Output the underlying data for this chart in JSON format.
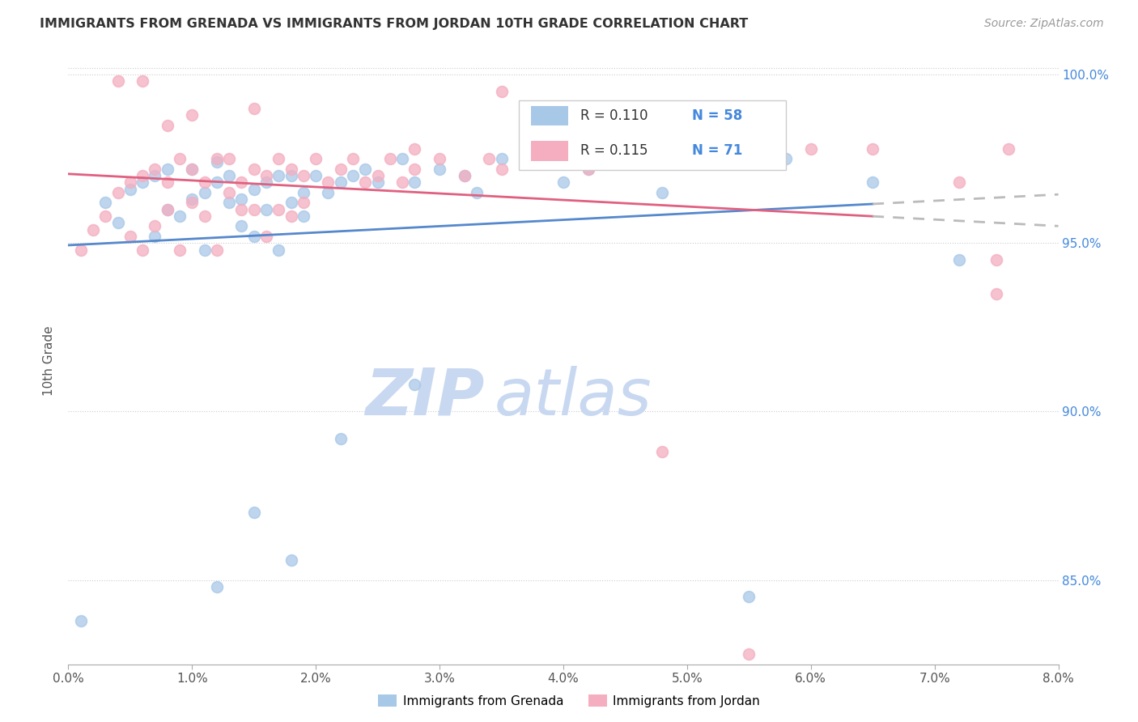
{
  "title": "IMMIGRANTS FROM GRENADA VS IMMIGRANTS FROM JORDAN 10TH GRADE CORRELATION CHART",
  "source": "Source: ZipAtlas.com",
  "ylabel": "10th Grade",
  "R_grenada": 0.11,
  "N_grenada": 58,
  "R_jordan": 0.115,
  "N_jordan": 71,
  "color_grenada": "#a8c8e8",
  "color_jordan": "#f4aec0",
  "trendline_grenada": "#5588cc",
  "trendline_jordan": "#e06080",
  "trendline_dashed_color": "#bbbbbb",
  "watermark_zip_color": "#c8d8f0",
  "watermark_atlas_color": "#c8d8f0",
  "background_color": "#ffffff",
  "xlim": [
    0.0,
    0.08
  ],
  "ylim": [
    0.825,
    1.005
  ],
  "xticks": [
    0.0,
    0.01,
    0.02,
    0.03,
    0.04,
    0.05,
    0.06,
    0.07,
    0.08
  ],
  "yticks": [
    0.85,
    0.9,
    0.95,
    1.0
  ],
  "trend_solid_end": 0.065,
  "grenada_x": [
    0.001,
    0.003,
    0.004,
    0.005,
    0.006,
    0.007,
    0.007,
    0.008,
    0.008,
    0.009,
    0.01,
    0.01,
    0.011,
    0.011,
    0.012,
    0.012,
    0.013,
    0.013,
    0.014,
    0.014,
    0.015,
    0.015,
    0.016,
    0.016,
    0.017,
    0.017,
    0.018,
    0.018,
    0.019,
    0.019,
    0.02,
    0.021,
    0.022,
    0.023,
    0.024,
    0.025,
    0.027,
    0.028,
    0.03,
    0.032,
    0.033,
    0.035,
    0.038,
    0.04,
    0.042,
    0.044,
    0.048,
    0.052,
    0.055,
    0.058,
    0.012,
    0.015,
    0.018,
    0.022,
    0.028,
    0.055,
    0.065,
    0.072
  ],
  "grenada_y": [
    0.838,
    0.962,
    0.956,
    0.966,
    0.968,
    0.97,
    0.952,
    0.96,
    0.972,
    0.958,
    0.963,
    0.972,
    0.965,
    0.948,
    0.968,
    0.974,
    0.97,
    0.962,
    0.963,
    0.955,
    0.966,
    0.952,
    0.96,
    0.968,
    0.97,
    0.948,
    0.97,
    0.962,
    0.965,
    0.958,
    0.97,
    0.965,
    0.968,
    0.97,
    0.972,
    0.968,
    0.975,
    0.968,
    0.972,
    0.97,
    0.965,
    0.975,
    0.978,
    0.968,
    0.972,
    0.975,
    0.965,
    0.975,
    0.975,
    0.975,
    0.848,
    0.87,
    0.856,
    0.892,
    0.908,
    0.845,
    0.968,
    0.945
  ],
  "jordan_x": [
    0.001,
    0.002,
    0.003,
    0.004,
    0.005,
    0.005,
    0.006,
    0.006,
    0.007,
    0.007,
    0.008,
    0.008,
    0.009,
    0.009,
    0.01,
    0.01,
    0.011,
    0.011,
    0.012,
    0.012,
    0.013,
    0.013,
    0.014,
    0.014,
    0.015,
    0.015,
    0.016,
    0.016,
    0.017,
    0.017,
    0.018,
    0.018,
    0.019,
    0.019,
    0.02,
    0.021,
    0.022,
    0.023,
    0.024,
    0.025,
    0.026,
    0.027,
    0.028,
    0.03,
    0.032,
    0.034,
    0.035,
    0.038,
    0.04,
    0.042,
    0.045,
    0.048,
    0.05,
    0.055,
    0.06,
    0.065,
    0.072,
    0.075,
    0.004,
    0.006,
    0.008,
    0.01,
    0.015,
    0.028,
    0.035,
    0.048,
    0.055,
    0.075,
    0.076
  ],
  "jordan_y": [
    0.948,
    0.954,
    0.958,
    0.965,
    0.968,
    0.952,
    0.97,
    0.948,
    0.972,
    0.955,
    0.968,
    0.96,
    0.975,
    0.948,
    0.972,
    0.962,
    0.968,
    0.958,
    0.975,
    0.948,
    0.965,
    0.975,
    0.968,
    0.96,
    0.972,
    0.96,
    0.97,
    0.952,
    0.975,
    0.96,
    0.972,
    0.958,
    0.97,
    0.962,
    0.975,
    0.968,
    0.972,
    0.975,
    0.968,
    0.97,
    0.975,
    0.968,
    0.972,
    0.975,
    0.97,
    0.975,
    0.972,
    0.978,
    0.975,
    0.972,
    0.978,
    0.975,
    0.978,
    0.98,
    0.978,
    0.978,
    0.968,
    0.945,
    0.998,
    0.998,
    0.985,
    0.988,
    0.99,
    0.978,
    0.995,
    0.888,
    0.828,
    0.935,
    0.978
  ]
}
